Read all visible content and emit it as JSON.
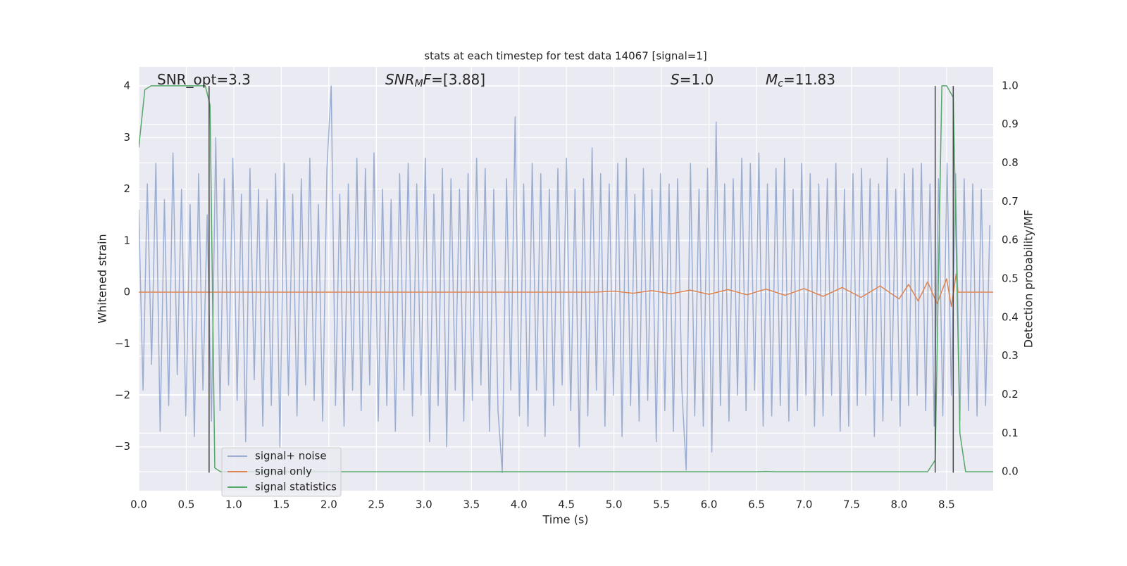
{
  "chart_data": {
    "type": "line",
    "title": "stats at each timestep for test data 14067 [signal=1]",
    "x_label": "Time (s)",
    "y_label": "Whitened strain",
    "y2_label": "Detection probability/MF",
    "xlim": [
      0,
      8.99
    ],
    "ylim": [
      -3.85,
      4.37
    ],
    "y2lim": [
      -0.049,
      1.049
    ],
    "xticks": [
      {
        "value": 0,
        "label": "0.0"
      },
      0.5,
      {
        "value": 1,
        "label": "1.0"
      },
      1.5,
      {
        "value": 2,
        "label": "2.0"
      },
      2.5,
      {
        "value": 3,
        "label": "3.0"
      },
      3.5,
      {
        "value": 4,
        "label": "4.0"
      },
      4.5,
      {
        "value": 5,
        "label": "5.0"
      },
      5.5,
      {
        "value": 6,
        "label": "6.0"
      },
      6.5,
      {
        "value": 7,
        "label": "7.0"
      },
      7.5,
      {
        "value": 8,
        "label": "8.0"
      },
      8.5
    ],
    "yticks": [
      {
        "value": -3,
        "label": "−3"
      },
      {
        "value": -2,
        "label": "−2"
      },
      {
        "value": -1,
        "label": "−1"
      },
      0,
      1,
      2,
      3,
      4
    ],
    "y2ticks": [
      {
        "value": 0,
        "label": "0.0"
      },
      0.1,
      0.2,
      0.3,
      0.4,
      0.5,
      0.6,
      0.7,
      0.8,
      0.9,
      {
        "value": 1,
        "label": "1.0"
      }
    ],
    "grid": true,
    "legend_loc": "lower left",
    "annotations": [
      [
        "SNR_opt=3.3"
      ],
      [
        {
          "text": "SNR",
          "italic": true
        },
        {
          "text": "M",
          "italic": true,
          "sub": true
        },
        {
          "text": "F",
          "italic": true
        },
        "=[3.88]"
      ],
      [
        {
          "text": "S",
          "italic": true
        },
        "=1.0"
      ],
      [
        {
          "text": "M",
          "italic": true
        },
        {
          "text": "c",
          "italic": true,
          "sub": true
        },
        "=11.83"
      ]
    ],
    "vlines": {
      "x": [
        0.74,
        8.38,
        8.57
      ],
      "span": [
        -3.5,
        4
      ],
      "color": "#444444"
    },
    "series": [
      {
        "name": "signal+ noise",
        "color": "#4c72b0",
        "opacity": 0.5,
        "x": [
          0,
          0.045,
          0.09,
          0.135,
          0.18,
          0.225,
          0.27,
          0.315,
          0.36,
          0.405,
          0.45,
          0.495,
          0.54,
          0.585,
          0.63,
          0.675,
          0.72,
          0.765,
          0.81,
          0.855,
          0.9,
          0.945,
          0.99,
          1.035,
          1.08,
          1.125,
          1.17,
          1.215,
          1.26,
          1.305,
          1.35,
          1.395,
          1.44,
          1.485,
          1.53,
          1.575,
          1.62,
          1.665,
          1.71,
          1.755,
          1.8,
          1.845,
          1.89,
          1.935,
          1.98,
          2.025,
          2.07,
          2.115,
          2.16,
          2.205,
          2.25,
          2.295,
          2.34,
          2.385,
          2.43,
          2.475,
          2.52,
          2.565,
          2.61,
          2.655,
          2.7,
          2.745,
          2.79,
          2.835,
          2.88,
          2.925,
          2.97,
          3.015,
          3.06,
          3.105,
          3.15,
          3.195,
          3.24,
          3.285,
          3.33,
          3.375,
          3.42,
          3.465,
          3.51,
          3.555,
          3.6,
          3.645,
          3.69,
          3.735,
          3.78,
          3.825,
          3.87,
          3.915,
          3.96,
          4.005,
          4.05,
          4.095,
          4.14,
          4.185,
          4.23,
          4.275,
          4.32,
          4.365,
          4.41,
          4.455,
          4.5,
          4.545,
          4.59,
          4.635,
          4.68,
          4.725,
          4.77,
          4.815,
          4.86,
          4.905,
          4.95,
          4.995,
          5.04,
          5.085,
          5.13,
          5.175,
          5.22,
          5.265,
          5.31,
          5.355,
          5.4,
          5.445,
          5.49,
          5.535,
          5.58,
          5.625,
          5.67,
          5.715,
          5.76,
          5.805,
          5.85,
          5.895,
          5.94,
          5.985,
          6.03,
          6.075,
          6.12,
          6.165,
          6.21,
          6.255,
          6.3,
          6.345,
          6.39,
          6.435,
          6.48,
          6.525,
          6.57,
          6.615,
          6.66,
          6.705,
          6.75,
          6.795,
          6.84,
          6.885,
          6.93,
          6.975,
          7.02,
          7.065,
          7.11,
          7.155,
          7.2,
          7.245,
          7.29,
          7.335,
          7.38,
          7.425,
          7.47,
          7.515,
          7.56,
          7.605,
          7.65,
          7.695,
          7.74,
          7.785,
          7.83,
          7.875,
          7.92,
          7.965,
          8.01,
          8.055,
          8.1,
          8.145,
          8.19,
          8.235,
          8.28,
          8.325,
          8.37,
          8.415,
          8.46,
          8.505,
          8.55,
          8.595,
          8.64,
          8.685,
          8.73,
          8.775,
          8.82,
          8.865,
          8.91,
          8.955
        ],
        "values": [
          1.6,
          -1.9,
          2.1,
          -1.4,
          2.5,
          -2.7,
          1.8,
          -2.2,
          2.7,
          -1.6,
          2.0,
          -2.4,
          1.7,
          -2.8,
          2.3,
          -1.9,
          1.5,
          -2.5,
          3.0,
          -2.3,
          2.2,
          -1.8,
          2.6,
          -2.1,
          1.9,
          -2.9,
          2.4,
          -1.7,
          2.0,
          -2.6,
          1.8,
          -2.2,
          2.3,
          -3.0,
          2.5,
          -2.0,
          1.9,
          -2.4,
          2.2,
          -1.8,
          2.6,
          -2.1,
          1.7,
          -2.5,
          2.4,
          4.0,
          -2.2,
          1.9,
          -2.6,
          2.1,
          -1.9,
          2.6,
          -2.3,
          2.4,
          -1.8,
          2.7,
          -2.5,
          2.0,
          -2.2,
          1.8,
          -2.7,
          2.3,
          -1.9,
          2.5,
          -2.4,
          2.1,
          -2.0,
          2.6,
          -2.9,
          1.9,
          -2.2,
          2.4,
          -3.0,
          2.2,
          -1.9,
          2.0,
          -2.5,
          2.3,
          -2.1,
          2.6,
          -1.8,
          2.4,
          -2.7,
          2.0,
          -2.3,
          -3.5,
          2.2,
          -1.9,
          3.4,
          -2.4,
          2.1,
          -2.6,
          2.5,
          -1.9,
          2.3,
          -2.8,
          2.0,
          -2.2,
          2.4,
          -1.8,
          2.6,
          -2.3,
          2.0,
          -3.0,
          2.2,
          -2.4,
          2.8,
          -1.9,
          2.3,
          -2.6,
          2.1,
          -2.0,
          2.5,
          -2.8,
          2.6,
          -2.2,
          1.9,
          -2.5,
          2.4,
          -2.1,
          2.0,
          -2.9,
          2.3,
          -2.3,
          2.1,
          -2.7,
          2.2,
          -1.9,
          -3.45,
          2.5,
          -2.4,
          2.0,
          -2.6,
          2.4,
          -3.1,
          3.3,
          -2.2,
          2.1,
          -2.5,
          2.2,
          -2.0,
          2.6,
          -2.3,
          2.5,
          -1.9,
          2.7,
          -2.6,
          2.1,
          -2.4,
          2.4,
          -2.2,
          2.6,
          -2.5,
          2.0,
          -2.3,
          2.5,
          -2.0,
          2.3,
          -2.6,
          2.1,
          -2.4,
          2.2,
          -2.0,
          2.5,
          -2.7,
          2.0,
          -2.6,
          2.3,
          -2.2,
          2.4,
          -2.0,
          2.2,
          -2.8,
          2.1,
          -2.5,
          2.6,
          -2.1,
          2.0,
          -2.6,
          2.3,
          -2.2,
          2.4,
          -2.0,
          2.5,
          -2.3,
          2.1,
          -2.6,
          2.2,
          -2.4,
          2.5,
          -2.0,
          2.3,
          -2.5,
          2.2,
          -2.3,
          2.1,
          -2.4,
          2.0,
          -2.2,
          1.3
        ]
      },
      {
        "name": "signal only",
        "color": "#dd8452",
        "opacity": 1,
        "x": [
          0,
          4.8,
          5.0,
          5.2,
          5.4,
          5.6,
          5.8,
          6.0,
          6.2,
          6.4,
          6.6,
          6.8,
          7.0,
          7.2,
          7.4,
          7.6,
          7.8,
          8.0,
          8.1,
          8.2,
          8.3,
          8.4,
          8.5,
          8.55,
          8.6,
          8.62,
          8.99
        ],
        "values": [
          0,
          0,
          0.02,
          -0.02,
          0.03,
          -0.03,
          0.04,
          -0.04,
          0.05,
          -0.05,
          0.06,
          -0.06,
          0.07,
          -0.08,
          0.09,
          -0.1,
          0.12,
          -0.13,
          0.15,
          -0.17,
          0.2,
          -0.22,
          0.26,
          -0.28,
          0.35,
          0,
          0
        ]
      },
      {
        "name": "signal statistics",
        "color": "#55a868",
        "opacity": 1,
        "axis": "y2",
        "x": [
          0,
          0.064,
          0.13,
          0.2,
          0.3,
          0.4,
          0.5,
          0.6,
          0.7,
          0.75,
          0.8,
          0.86,
          1.0,
          6.5,
          6.6,
          6.7,
          8.3,
          8.38,
          8.45,
          8.5,
          8.57,
          8.64,
          8.7,
          8.99
        ],
        "values": [
          0.84,
          0.99,
          1.0,
          1.0,
          1.0,
          1.0,
          1.0,
          1.0,
          1.0,
          0.95,
          0.01,
          0.0,
          0.0,
          0.0,
          0.001,
          0.0,
          0.0,
          0.03,
          1.0,
          1.0,
          0.97,
          0.1,
          0.0,
          0.0
        ]
      }
    ]
  }
}
